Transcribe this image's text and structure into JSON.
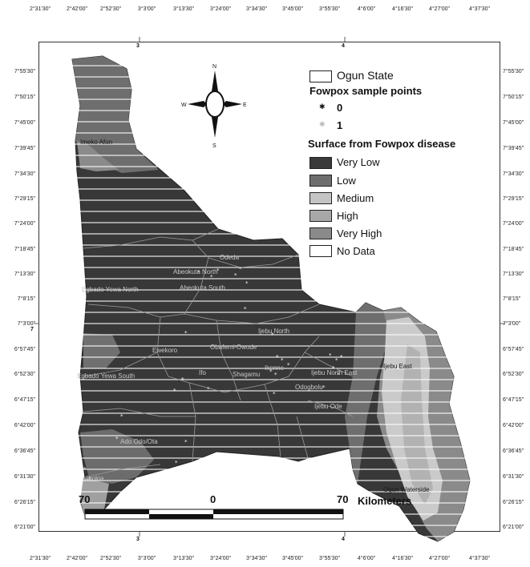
{
  "axes": {
    "grid_zone_top": "3",
    "grid_zone_top2": "4",
    "grid_zone_left": "7",
    "grid_zone_bottom": "3",
    "grid_zone_bottom2": "4",
    "longitudes": [
      "2°31'30\"",
      "2°42'00\"",
      "2°52'30\"",
      "3°3'00\"",
      "3°13'30\"",
      "3°24'00\"",
      "3°34'30\"",
      "3°45'00\"",
      "3°55'30\"",
      "4°6'00\"",
      "4°16'30\"",
      "4°27'00\"",
      "4°37'30\""
    ],
    "latitudes_left": [
      "7°55'30\"",
      "7°50'15\"",
      "7°45'00\"",
      "7°39'45\"",
      "7°34'30\"",
      "7°29'15\"",
      "7°24'00\"",
      "7°18'45\"",
      "7°13'30\"",
      "7°8'15\"",
      "7°3'00\"",
      "6°57'45\"",
      "6°52'30\"",
      "6°47'15\"",
      "6°42'00\"",
      "6°36'45\"",
      "6°31'30\"",
      "6°26'15\"",
      "6°21'00\""
    ],
    "latitudes_right": [
      "7°55'30\"",
      "7°50'15\"",
      "7°45'00\"",
      "7°39'45\"",
      "7°34'30\"",
      "7°29'15\"",
      "7°24'00\"",
      "7°18'45\"",
      "7°13'30\"",
      "7°8'15\"",
      "7°3'00\"",
      "6°57'45\"",
      "6°52'30\"",
      "6°47'15\"",
      "6°42'00\"",
      "6°36'45\"",
      "6°31'30\"",
      "6°26'15\"",
      "6°21'00\""
    ]
  },
  "compass": {
    "n": "N",
    "s": "S",
    "e": "E",
    "w": "W"
  },
  "legend": {
    "state_label": "Ogun State",
    "points_title": "Fowpox sample points",
    "point_0": "0",
    "point_1": "1",
    "surface_title": "Surface from Fowpox disease",
    "classes": [
      {
        "label": "Very Low",
        "color": "#3a3a3a"
      },
      {
        "label": "Low",
        "color": "#6e6e6e"
      },
      {
        "label": "Medium",
        "color": "#c4c4c4"
      },
      {
        "label": "High",
        "color": "#a8a8a8"
      },
      {
        "label": "Very High",
        "color": "#8a8a8a"
      },
      {
        "label": "No Data",
        "color": "#ffffff"
      }
    ]
  },
  "scale_bar": {
    "left": "70",
    "mid": "0",
    "right": "70",
    "units": "Kilometers"
  },
  "places": [
    "Imeko Afon",
    "Abeokuta North",
    "Abeokuta South",
    "Odeda",
    "Egbado Yewa North",
    "Ewekoro",
    "Obafemi-Owode",
    "Ikenne",
    "Ijebu North",
    "Ijebu North East",
    "Ijebu East",
    "Ifo",
    "Shagamu",
    "Odogbolu",
    "Ijebu Ode",
    "Egbado Yewa South",
    "Ado Odo/Ota",
    "Ipokia",
    "Ogun Waterside"
  ]
}
